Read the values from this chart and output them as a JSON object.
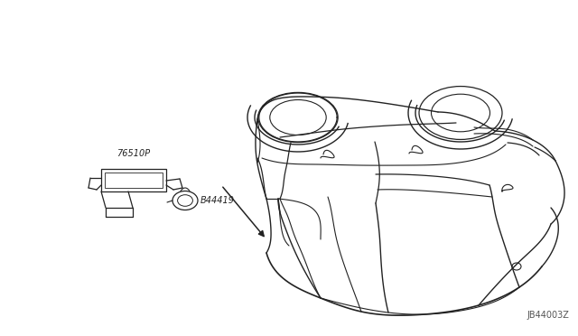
{
  "background_color": "#ffffff",
  "diagram_id": "JB44003Z",
  "part1_label": "76510P",
  "part2_label": "B44419",
  "lw": 0.9,
  "car_color": "#222222",
  "label_color": "#222222",
  "diagram_id_color": "#555555"
}
